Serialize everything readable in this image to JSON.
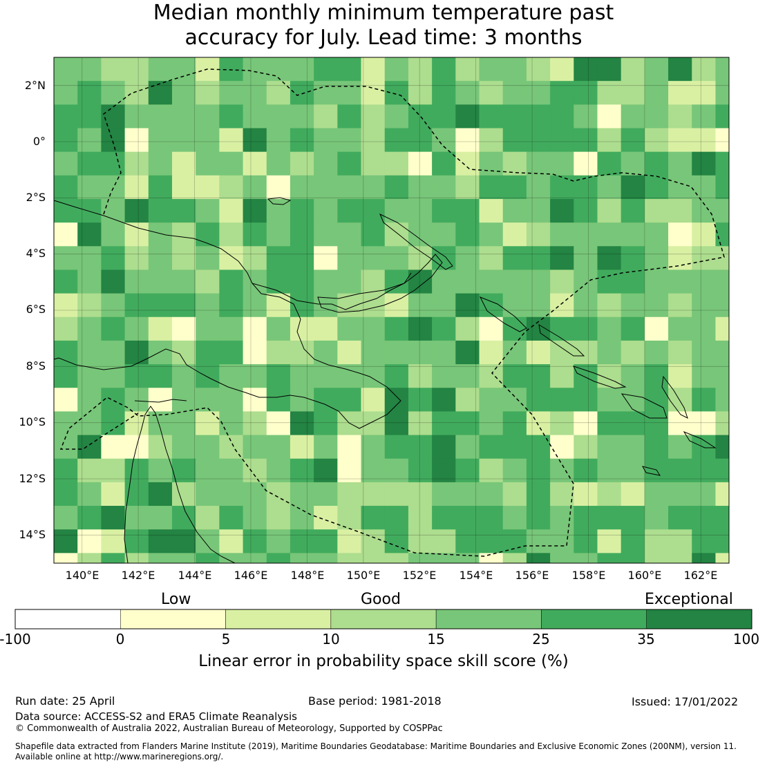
{
  "title": {
    "line1": "Median monthly minimum temperature past",
    "line2": "accuracy for July. Lead time: 3 months"
  },
  "map": {
    "lon_range": [
      139,
      163
    ],
    "lat_range": [
      -15,
      3
    ],
    "lat_ticks": [
      "2°N",
      "0°",
      "2°S",
      "4°S",
      "6°S",
      "8°S",
      "10°S",
      "12°S",
      "14°S"
    ],
    "lon_ticks": [
      "140°E",
      "142°E",
      "144°E",
      "146°E",
      "148°E",
      "150°E",
      "152°E",
      "154°E",
      "156°E",
      "158°E",
      "160°E",
      "162°E"
    ],
    "gridlines": true
  },
  "colorbar": {
    "category_labels": [
      "Low",
      "Good",
      "Exceptional"
    ],
    "tick_labels": [
      "-100",
      "0",
      "5",
      "10",
      "15",
      "25",
      "35",
      "100"
    ],
    "bins": [
      {
        "from": -100,
        "to": 0,
        "color": "#ffffff"
      },
      {
        "from": 0,
        "to": 5,
        "color": "#ffffcc"
      },
      {
        "from": 5,
        "to": 10,
        "color": "#d9f0a3"
      },
      {
        "from": 10,
        "to": 15,
        "color": "#addd8e"
      },
      {
        "from": 15,
        "to": 25,
        "color": "#78c679"
      },
      {
        "from": 25,
        "to": 35,
        "color": "#41ab5d"
      },
      {
        "from": 35,
        "to": 100,
        "color": "#238443"
      }
    ],
    "label": "Linear error in probability space skill score (%)"
  },
  "footer": {
    "run_date": "Run date: 25 April",
    "base_period": "Base period: 1981-2018",
    "issued": "Issued: 17/01/2022",
    "data_source": "Data source: ACCESS-S2 and ERA5 Climate Reanalysis",
    "copyright": "© Commonwealth of Australia 2022, Australian Bureau of Meteorology, Supported by COSPPac",
    "shapefile_line1": "Shapefile data extracted from Flanders Marine Institute (2019), Maritime Boundaries Geodatabase: Maritime Boundaries and Exclusive Economic Zones (200NM), version 11.",
    "shapefile_line2": "Available online at http://www.marineregions.org/."
  }
}
